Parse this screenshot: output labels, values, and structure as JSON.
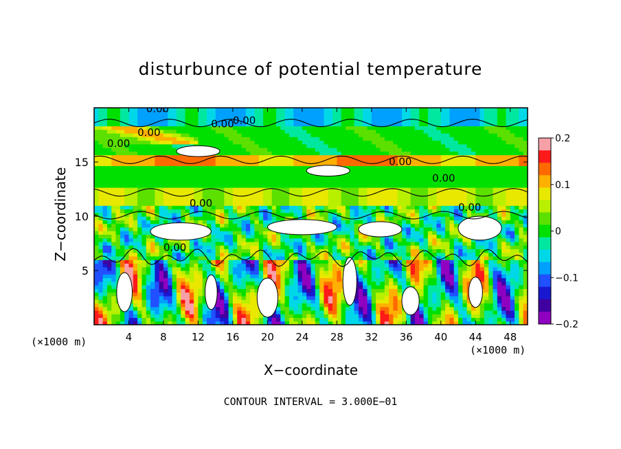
{
  "chart_data": {
    "type": "heatmap",
    "title": "disturbunce of potential temperature",
    "xlabel": "X−coordinate",
    "ylabel": "Z−coordinate",
    "x_unit_label": "(×1000 m)",
    "y_unit_label": "(×1000 m)",
    "xlim": [
      0,
      50
    ],
    "ylim": [
      0,
      20
    ],
    "x_ticks": [
      4,
      8,
      12,
      16,
      20,
      24,
      28,
      32,
      36,
      40,
      44,
      48
    ],
    "x_tick_labels": [
      "4",
      "8",
      "12",
      "16",
      "20",
      "24",
      "28",
      "32",
      "36",
      "40",
      "44",
      "48"
    ],
    "y_ticks": [
      5,
      10,
      15
    ],
    "y_tick_labels": [
      "5",
      "10",
      "15"
    ],
    "colorbar": {
      "min": -0.2,
      "max": 0.2,
      "ticks": [
        0.2,
        0.1,
        0,
        -0.1,
        -0.2
      ],
      "tick_labels": [
        "0.2",
        "0.1",
        "0",
        "−0.1",
        "−0.2"
      ],
      "colors": [
        "#f7a0a8",
        "#ff1a1a",
        "#ff6a00",
        "#ffb000",
        "#e8e800",
        "#b8f000",
        "#5ce000",
        "#00e000",
        "#00e8a0",
        "#00d8e8",
        "#00a0ff",
        "#2050ff",
        "#1818d0",
        "#4000a0",
        "#9000c0"
      ]
    },
    "contour_labels": [
      "0.00",
      "0.00",
      "0.00",
      "0.00",
      "0.00",
      "0.00",
      "0.00",
      "0.00",
      "0.00",
      "0.00"
    ],
    "footnote": "CONTOUR INTERVAL = 3.000E−01"
  }
}
